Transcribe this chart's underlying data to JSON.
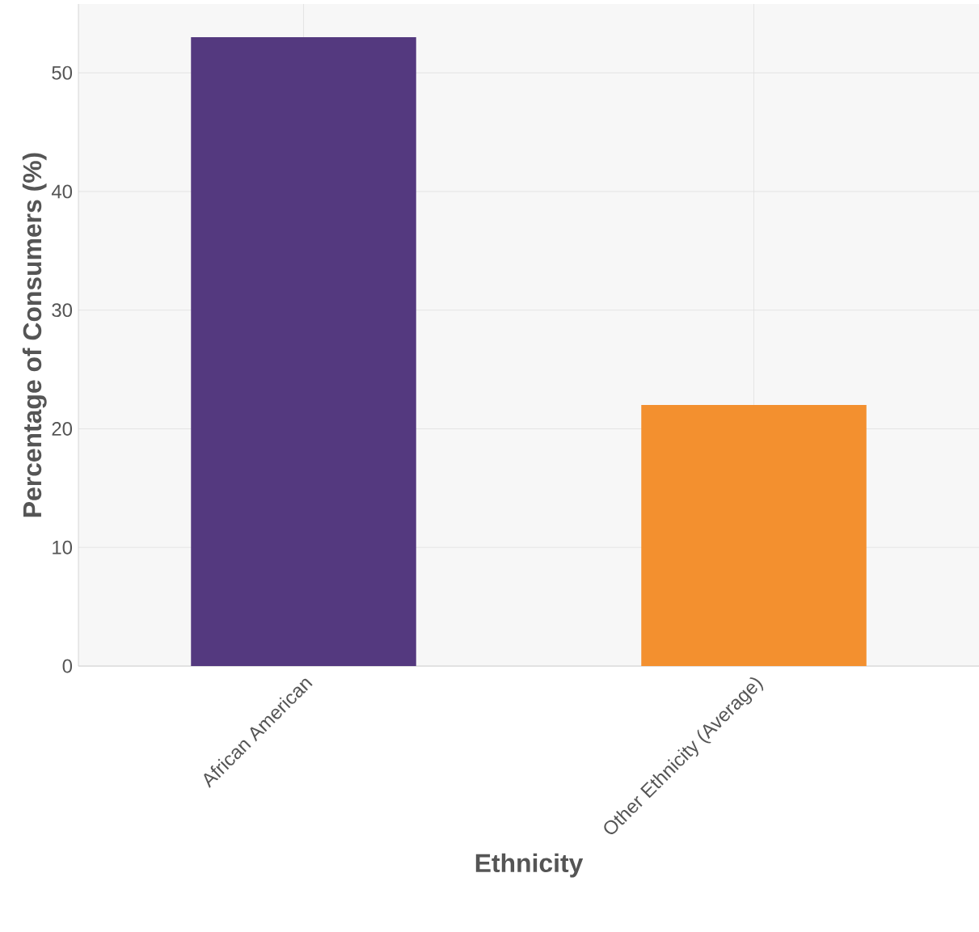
{
  "chart_data": {
    "type": "bar",
    "xlabel": "Ethnicity",
    "ylabel": "Percentage of Consumers (%)",
    "categories": [
      "African American",
      "Other Ethnicity (Average)"
    ],
    "values": [
      53,
      22
    ],
    "colors": [
      "#54397f",
      "#f3902f"
    ],
    "ylim": [
      0,
      55.8
    ],
    "yticks": [
      0,
      10,
      20,
      30,
      40,
      50
    ],
    "grid": true
  }
}
